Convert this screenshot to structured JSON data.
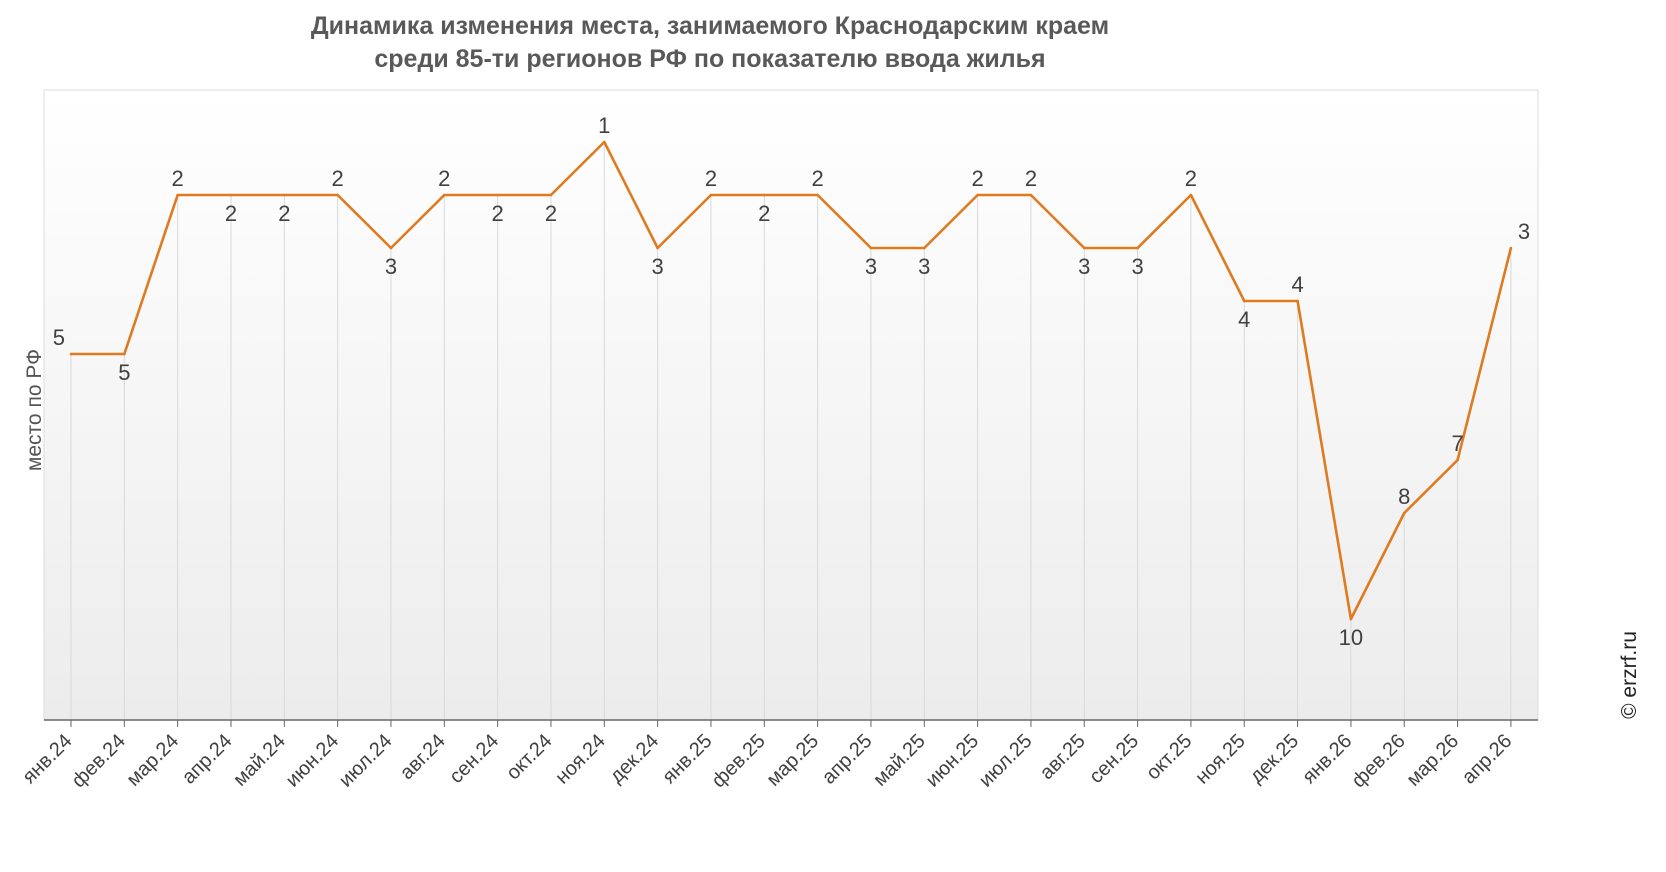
{
  "chart_data": {
    "type": "line",
    "title_line1": "Динамика изменения места, занимаемого Краснодарским краем",
    "title_line2": "среди 85-ти регионов РФ по показателю ввода жилья",
    "ylabel": "место по РФ",
    "xlabel": "",
    "y_axis_inverted": true,
    "ylim": [
      11,
      1
    ],
    "grid": "vertical",
    "line_color": "#E07A1F",
    "categories": [
      "янв.24",
      "фев.24",
      "мар.24",
      "апр.24",
      "май.24",
      "июн.24",
      "июл.24",
      "авг.24",
      "сен.24",
      "окт.24",
      "ноя.24",
      "дек.24",
      "янв.25",
      "фев.25",
      "мар.25",
      "апр.25",
      "май.25",
      "июн.25",
      "июл.25",
      "авг.25",
      "сен.25",
      "окт.25",
      "ноя.25",
      "дек.25",
      "янв.26",
      "фев.26",
      "мар.26",
      "апр.26"
    ],
    "series": [
      {
        "values": [
          5,
          5,
          2,
          2,
          2,
          2,
          3,
          2,
          2,
          2,
          1,
          3,
          2,
          2,
          2,
          3,
          3,
          2,
          2,
          3,
          3,
          2,
          4,
          4,
          10,
          8,
          7,
          3
        ]
      }
    ]
  },
  "watermark": "© erzrf.ru"
}
